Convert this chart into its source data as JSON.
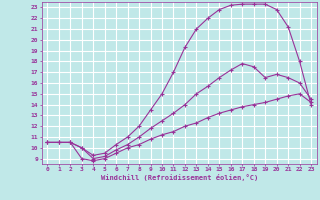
{
  "xlabel": "Windchill (Refroidissement éolien,°C)",
  "bg_color": "#c0e8e8",
  "grid_color": "#ffffff",
  "line_color": "#993399",
  "xlim": [
    -0.5,
    23.5
  ],
  "ylim": [
    8.5,
    23.5
  ],
  "xticks": [
    0,
    1,
    2,
    3,
    4,
    5,
    6,
    7,
    8,
    9,
    10,
    11,
    12,
    13,
    14,
    15,
    16,
    17,
    18,
    19,
    20,
    21,
    22,
    23
  ],
  "yticks": [
    9,
    10,
    11,
    12,
    13,
    14,
    15,
    16,
    17,
    18,
    19,
    20,
    21,
    22,
    23
  ],
  "curve1_x": [
    0,
    1,
    2,
    3,
    4,
    5,
    6,
    7,
    8,
    9,
    10,
    11,
    12,
    13,
    14,
    15,
    16,
    17,
    18,
    19,
    20,
    21,
    22,
    23
  ],
  "curve1_y": [
    10.5,
    10.5,
    10.5,
    10.0,
    9.3,
    9.5,
    10.3,
    11.0,
    12.0,
    13.5,
    15.0,
    17.0,
    19.3,
    21.0,
    22.0,
    22.8,
    23.2,
    23.3,
    23.3,
    23.3,
    22.8,
    21.2,
    18.0,
    14.0
  ],
  "curve2_x": [
    0,
    1,
    2,
    3,
    4,
    5,
    6,
    7,
    8,
    9,
    10,
    11,
    12,
    13,
    14,
    15,
    16,
    17,
    18,
    19,
    20,
    21,
    22,
    23
  ],
  "curve2_y": [
    10.5,
    10.5,
    10.5,
    10.0,
    9.0,
    9.2,
    9.8,
    10.3,
    11.0,
    11.8,
    12.5,
    13.2,
    14.0,
    15.0,
    15.7,
    16.5,
    17.2,
    17.8,
    17.5,
    16.5,
    16.8,
    16.5,
    16.0,
    14.5
  ],
  "curve3_x": [
    0,
    1,
    2,
    3,
    4,
    5,
    6,
    7,
    8,
    9,
    10,
    11,
    12,
    13,
    14,
    15,
    16,
    17,
    18,
    19,
    20,
    21,
    22,
    23
  ],
  "curve3_y": [
    10.5,
    10.5,
    10.5,
    9.0,
    8.8,
    9.0,
    9.5,
    10.0,
    10.3,
    10.8,
    11.2,
    11.5,
    12.0,
    12.3,
    12.8,
    13.2,
    13.5,
    13.8,
    14.0,
    14.2,
    14.5,
    14.8,
    15.0,
    14.2
  ]
}
